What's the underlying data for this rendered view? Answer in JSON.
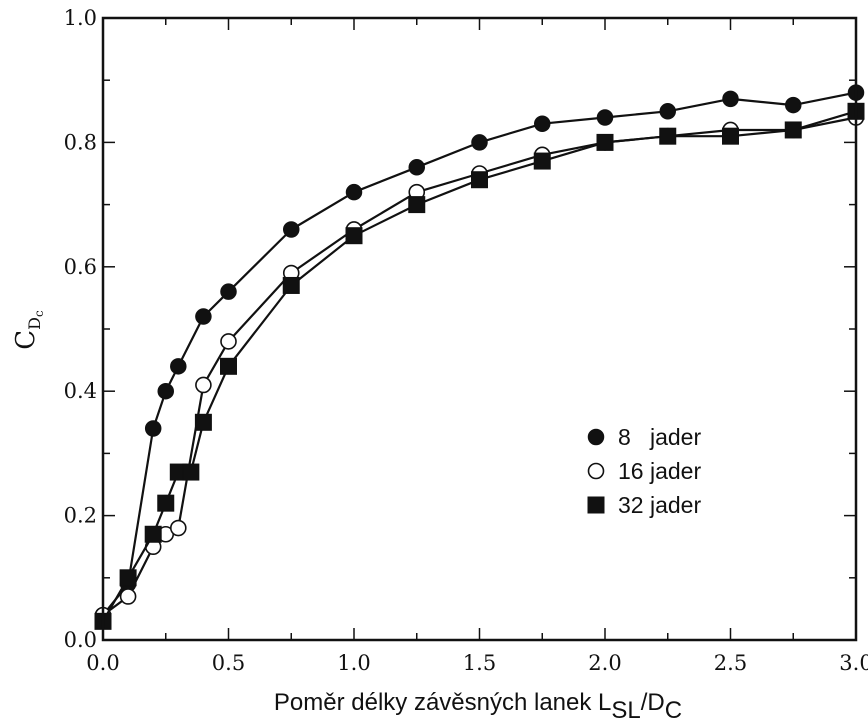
{
  "chart_data": {
    "type": "line",
    "xlabel": {
      "main": "Poměr délky závěsných lanek L",
      "sub1": "SL",
      "mid": "/D",
      "sub2": "C"
    },
    "ylabel": {
      "main": "C",
      "sub": "D",
      "sub2": "c"
    },
    "xlim": [
      0,
      3.0
    ],
    "ylim": [
      0,
      1.0
    ],
    "xticks": [
      0.0,
      0.5,
      1.0,
      1.5,
      2.0,
      2.5,
      3.0
    ],
    "xtick_labels": [
      "0.0",
      "0.5",
      "1.0",
      "1.5",
      "2.0",
      "2.5",
      "3.0"
    ],
    "yticks": [
      0.0,
      0.2,
      0.4,
      0.6,
      0.8,
      1.0
    ],
    "ytick_labels": [
      "0.0",
      "0.2",
      "0.4",
      "0.6",
      "0.8",
      "1.0"
    ],
    "legend_position": "center-right",
    "series": [
      {
        "name": "8   jader",
        "marker": "filled-circle",
        "x": [
          0.0,
          0.1,
          0.2,
          0.25,
          0.3,
          0.4,
          0.5,
          0.75,
          1.0,
          1.25,
          1.5,
          1.75,
          2.0,
          2.25,
          2.5,
          2.75,
          3.0
        ],
        "y": [
          0.04,
          0.09,
          0.34,
          0.4,
          0.44,
          0.52,
          0.56,
          0.66,
          0.72,
          0.76,
          0.8,
          0.83,
          0.84,
          0.85,
          0.87,
          0.86,
          0.88
        ]
      },
      {
        "name": "16 jader",
        "marker": "open-circle",
        "x": [
          0.0,
          0.1,
          0.2,
          0.25,
          0.3,
          0.4,
          0.5,
          0.75,
          1.0,
          1.25,
          1.5,
          1.75,
          2.0,
          2.25,
          2.5,
          2.75,
          3.0
        ],
        "y": [
          0.04,
          0.07,
          0.15,
          0.17,
          0.18,
          0.41,
          0.48,
          0.59,
          0.66,
          0.72,
          0.75,
          0.78,
          0.8,
          0.81,
          0.82,
          0.82,
          0.84
        ]
      },
      {
        "name": "32 jader",
        "marker": "filled-square",
        "x": [
          0.0,
          0.1,
          0.2,
          0.25,
          0.3,
          0.35,
          0.4,
          0.5,
          0.75,
          1.0,
          1.25,
          1.5,
          1.75,
          2.0,
          2.25,
          2.5,
          2.75,
          3.0
        ],
        "y": [
          0.03,
          0.1,
          0.17,
          0.22,
          0.27,
          0.27,
          0.35,
          0.44,
          0.57,
          0.65,
          0.7,
          0.74,
          0.77,
          0.8,
          0.81,
          0.81,
          0.82,
          0.85
        ]
      }
    ]
  }
}
